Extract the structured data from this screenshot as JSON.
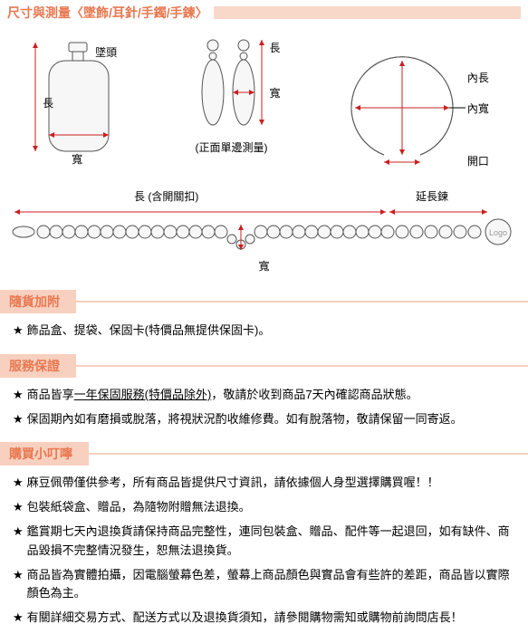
{
  "colors": {
    "accent": "#e87850",
    "accent_bg": "#f8d0c0",
    "tail_bg": "#f8d8c8",
    "measure": "#cc1f1f",
    "shape_stroke": "#555555",
    "shape_fill": "#f7f7f7",
    "text": "#000000",
    "background": "#ffffff"
  },
  "header": {
    "title": "尺寸與測量〈墜飾/耳針/手鐲/手鍊〉"
  },
  "diagrams_top": {
    "pendant": {
      "bail_label": "墜頭",
      "length_label": "長",
      "width_label": "寬"
    },
    "earring": {
      "length_label": "長",
      "width_label": "寬",
      "note": "(正面單邊測量)"
    },
    "bangle": {
      "inner_length_label": "內長",
      "inner_width_label": "內寬",
      "opening_label": "開口"
    }
  },
  "diagram_bottom": {
    "length_label": "長 (含開關扣)",
    "ext_label": "延長鍊",
    "width_label": "寬",
    "logo_text": "Logo"
  },
  "sections": [
    {
      "title": "隨貨加附",
      "items": [
        "飾品盒、提袋、保固卡(特價品無提供保固卡)。"
      ]
    },
    {
      "title": "服務保證",
      "items": [
        "商品皆享<u>一年保固服務(特價品除外)</u>，敬請於收到商品7天內確認商品狀態。",
        "保固期內如有磨損或脫落，將視狀況酌收維修費。如有脫落物，敬請保留一同寄返。"
      ]
    },
    {
      "title": "購買小叮嚀",
      "items": [
        "麻豆佩帶僅供參考，所有商品皆提供尺寸資訊，請依據個人身型選擇購買喔！！",
        "包裝紙袋盒、贈品，為隨物附贈無法退換。",
        "鑑賞期七天內退換貨請保持商品完整性，連同包裝盒、贈品、配件等一起退回，如有缺件、商品毀損不完整情況發生，恕無法退換貨。",
        "商品皆為實體拍攝，因電腦螢幕色差，螢幕上商品顏色與實品會有些許的差距，商品皆以實際顏色為主。",
        "有關詳細交易方式、配送方式以及退換貨須知，請參閱購物需知或購物前詢問店長！"
      ]
    }
  ],
  "star": "★"
}
